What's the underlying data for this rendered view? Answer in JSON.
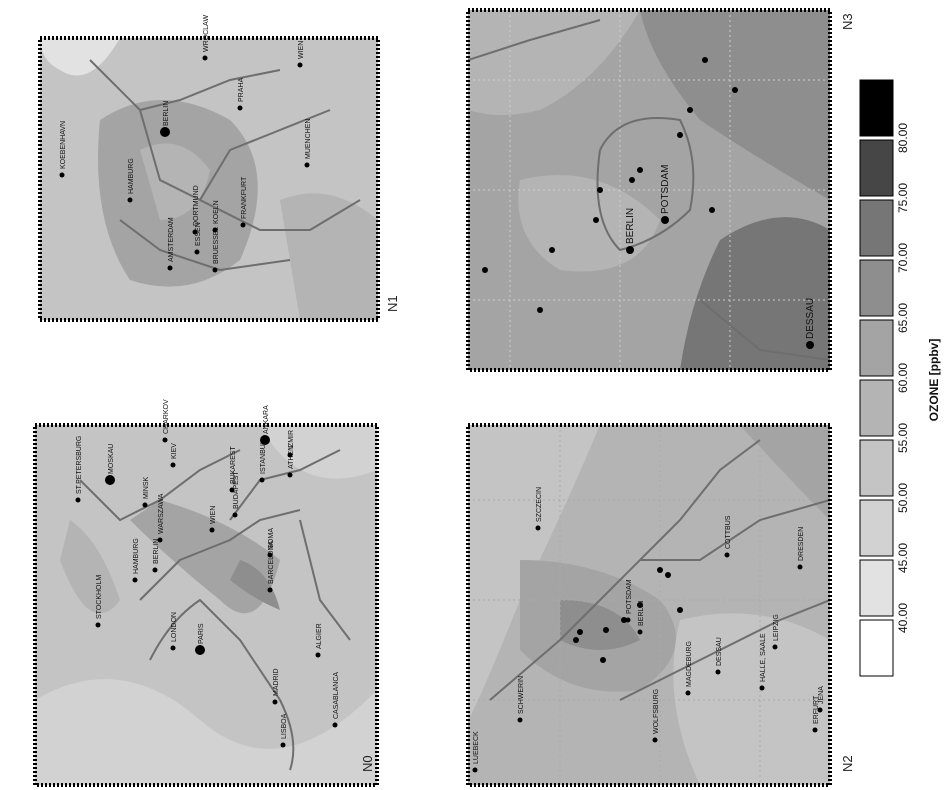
{
  "panels": [
    {
      "label": "N0",
      "cities": [
        "LONDON",
        "PARIS",
        "MADRID",
        "LISBOA",
        "BARCELONA",
        "ROMA",
        "BERLIN",
        "HAMBURG",
        "STOCKHOLM",
        "WARSZAWA",
        "MOSKAU",
        "ST.PETERSBURG",
        "MINSK",
        "KIEV",
        "CHARKOV",
        "WIEN",
        "BUDAPEST",
        "BUKAREST",
        "ISTANBUL",
        "ANKARA",
        "ATHEN",
        "IZMIR",
        "CASABLANCA",
        "ALGIER"
      ]
    },
    {
      "label": "N1",
      "cities": [
        "KOEBENHAVN",
        "HAMBURG",
        "BERLIN",
        "AMSTERDAM",
        "BRUESSEL",
        "KOELN",
        "ESSEN",
        "DORTMUND",
        "FRANKFURT",
        "PRAHA",
        "MUENCHEN",
        "WIEN",
        "WROCLAW"
      ]
    },
    {
      "label": "N2",
      "cities": [
        "LUEBECK",
        "SCHWERIN",
        "WOLFSBURG",
        "MAGDEBURG",
        "SZCZECIN",
        "BERLIN",
        "POTSDAM",
        "DESSAU",
        "HALLE, SAALE",
        "LEIPZIG",
        "COTTBUS",
        "DRESDEN",
        "ERFURT",
        "JENA"
      ]
    },
    {
      "label": "N3",
      "cities": [
        "BERLIN",
        "POTSDAM",
        "DESSAU"
      ]
    }
  ],
  "legend": {
    "title": "OZONE [ppbv]",
    "labels": [
      "40.00",
      "45.00",
      "50.00",
      "55.00",
      "60.00",
      "65.00",
      "70.00",
      "75.00",
      "80.00"
    ],
    "colors": [
      "#ffffff",
      "#e2e2e2",
      "#d2d2d2",
      "#c4c4c4",
      "#b4b4b4",
      "#a4a4a4",
      "#8e8e8e",
      "#767676",
      "#464646",
      "#000000"
    ]
  }
}
